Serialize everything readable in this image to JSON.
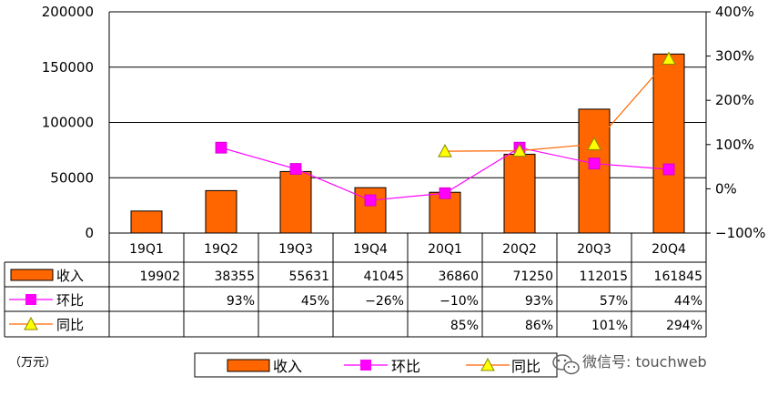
{
  "chart_data": {
    "type": "bar",
    "categories": [
      "19Q1",
      "19Q2",
      "19Q3",
      "19Q4",
      "20Q1",
      "20Q2",
      "20Q3",
      "20Q4"
    ],
    "y_left_range": [
      0,
      200000
    ],
    "y_left_ticks": [
      "0",
      "50000",
      "100000",
      "150000",
      "200000"
    ],
    "y_right_range": [
      -100,
      400
    ],
    "y_right_ticks": [
      "−100%",
      "0%",
      "100%",
      "200%",
      "300%",
      "400%"
    ],
    "series": [
      {
        "name": "收入",
        "type": "bar",
        "color": "#FF6600",
        "axis": "left",
        "values": [
          19902,
          38355,
          55631,
          41045,
          36860,
          71250,
          112015,
          161845
        ]
      },
      {
        "name": "环比",
        "type": "line",
        "marker": "square",
        "color": "#FF00FF",
        "axis": "right",
        "values": [
          null,
          93,
          45,
          -26,
          -10,
          93,
          57,
          44
        ]
      },
      {
        "name": "同比",
        "type": "line",
        "marker": "triangle",
        "color": "#FFFF00",
        "line_color": "#FF6600",
        "axis": "right",
        "values": [
          null,
          null,
          null,
          null,
          85,
          86,
          101,
          294
        ]
      }
    ],
    "table": {
      "rows": [
        {
          "label": "收入",
          "cells": [
            "19902",
            "38355",
            "55631",
            "41045",
            "36860",
            "71250",
            "112015",
            "161845"
          ]
        },
        {
          "label": "环比",
          "cells": [
            "",
            "93%",
            "45%",
            "−26%",
            "−10%",
            "93%",
            "57%",
            "44%"
          ]
        },
        {
          "label": "同比",
          "cells": [
            "",
            "",
            "",
            "",
            "85%",
            "86%",
            "101%",
            "294%"
          ]
        }
      ]
    },
    "unit_label": "（万元）",
    "legend": [
      "收入",
      "环比",
      "同比"
    ],
    "legend_position": "bottom",
    "grid": true
  },
  "watermark": {
    "text": "微信号: touchweb",
    "icon": "wechat-icon"
  }
}
